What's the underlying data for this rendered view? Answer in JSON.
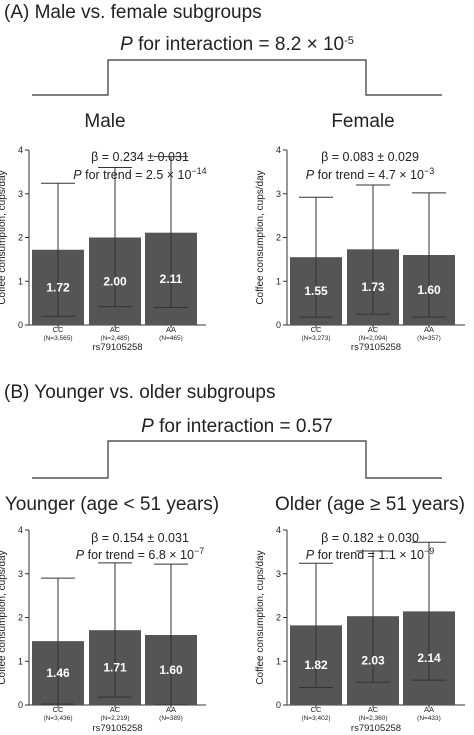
{
  "sections": [
    {
      "title": "(A) Male vs. female subgroups",
      "interaction_label": "P for interaction = 8.2 × 10",
      "interaction_exp": "-5"
    },
    {
      "title": "(B) Younger vs. older subgroups",
      "interaction_label": "P for interaction = 0.57",
      "interaction_exp": ""
    }
  ],
  "chart_data": [
    {
      "type": "bar",
      "title": "Male",
      "beta": "β = 0.234 ± 0.031",
      "trend_label": "P for trend = 2.5 × 10",
      "trend_exp": "−14",
      "ylabel": "Coffee consumption, cups/day",
      "xlabel": "rs79105258",
      "categories": [
        "CC",
        "AC",
        "AA"
      ],
      "n_labels": [
        "(N=3,565)",
        "(N=2,485)",
        "(N=465)"
      ],
      "values": [
        1.72,
        2.0,
        2.11
      ],
      "value_labels": [
        "1.72",
        "2.00",
        "2.11"
      ],
      "error_low": [
        0.2,
        0.42,
        0.4
      ],
      "error_high": [
        3.24,
        3.6,
        3.85
      ],
      "ylim": [
        0,
        4
      ],
      "yticks": [
        0,
        1,
        2,
        3,
        4
      ],
      "ytick_labels": [
        "0",
        "1",
        "2",
        "3",
        "4"
      ]
    },
    {
      "type": "bar",
      "title": "Female",
      "beta": "β = 0.083 ± 0.029",
      "trend_label": "P for trend = 4.7 × 10",
      "trend_exp": "−3",
      "ylabel": "Coffee consumption, cups/day",
      "xlabel": "rs79105258",
      "categories": [
        "CC",
        "AC",
        "AA"
      ],
      "n_labels": [
        "(N=3,273)",
        "(N=2,094)",
        "(N=357)"
      ],
      "values": [
        1.55,
        1.73,
        1.6
      ],
      "value_labels": [
        "1.55",
        "1.73",
        "1.60"
      ],
      "error_low": [
        0.18,
        0.25,
        0.18
      ],
      "error_high": [
        2.92,
        3.2,
        3.02
      ],
      "ylim": [
        0,
        4
      ],
      "yticks": [
        0,
        1,
        2,
        3,
        4
      ],
      "ytick_labels": [
        "0",
        "1",
        "2",
        "3",
        "4"
      ]
    },
    {
      "type": "bar",
      "title": "Younger (age < 51 years)",
      "beta": "β = 0.154 ± 0.031",
      "trend_label": "P for trend = 6.8 × 10",
      "trend_exp": "−7",
      "ylabel": "Coffee consumption, cups/day",
      "xlabel": "rs79105258",
      "categories": [
        "CC",
        "AC",
        "AA"
      ],
      "n_labels": [
        "(N=3,436)",
        "(N=2,219)",
        "(N=389)"
      ],
      "values": [
        1.46,
        1.71,
        1.6
      ],
      "value_labels": [
        "1.46",
        "1.71",
        "1.60"
      ],
      "error_low": [
        0.02,
        0.18,
        0.0
      ],
      "error_high": [
        2.9,
        3.25,
        3.22
      ],
      "ylim": [
        0,
        4
      ],
      "yticks": [
        0,
        1,
        2,
        3,
        4
      ],
      "ytick_labels": [
        "0",
        "1",
        "2",
        "3",
        "4"
      ]
    },
    {
      "type": "bar",
      "title": "Older (age ≥ 51 years)",
      "beta": "β = 0.182 ± 0.030",
      "trend_label": "P for trend = 1.1 × 10",
      "trend_exp": "−9",
      "ylabel": "Coffee consumption, cups/day",
      "xlabel": "rs79105258",
      "categories": [
        "CC",
        "AC",
        "AA"
      ],
      "n_labels": [
        "(N=3,402)",
        "(N=2,360)",
        "(N=433)"
      ],
      "values": [
        1.82,
        2.03,
        2.14
      ],
      "value_labels": [
        "1.82",
        "2.03",
        "2.14"
      ],
      "error_low": [
        0.4,
        0.52,
        0.57
      ],
      "error_high": [
        3.24,
        3.52,
        3.72
      ],
      "ylim": [
        0,
        4
      ],
      "yticks": [
        0,
        1,
        2,
        3,
        4
      ],
      "ytick_labels": [
        "0",
        "1",
        "2",
        "3",
        "4"
      ]
    }
  ]
}
